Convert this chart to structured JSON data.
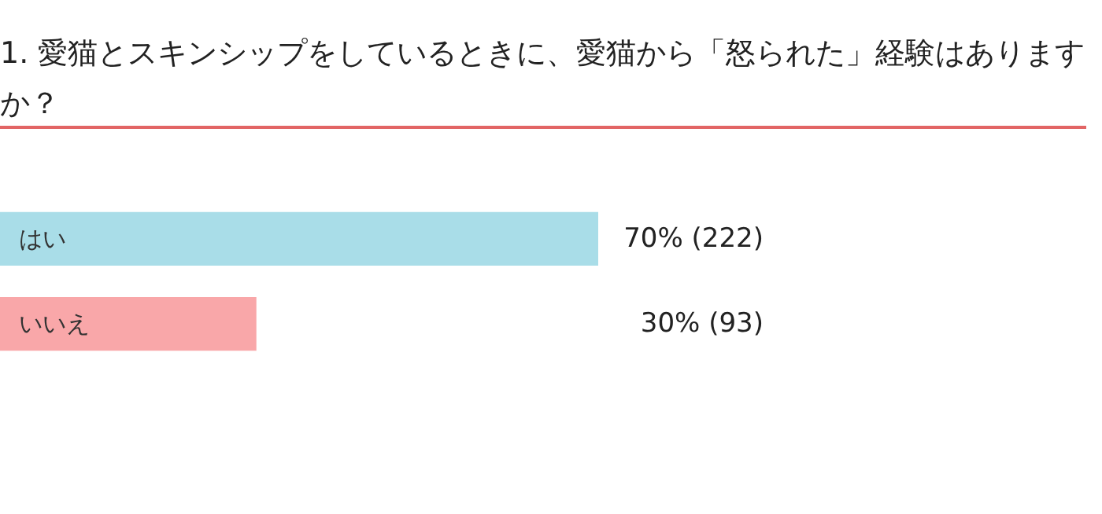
{
  "chart_data": {
    "type": "bar",
    "orientation": "horizontal",
    "title": "1. 愛猫とスキンシップをしているときに、愛猫から「怒られた」経験はありますか？",
    "categories": [
      "はい",
      "いいえ"
    ],
    "values": [
      70,
      30
    ],
    "colors": [
      "#a9dde8",
      "#f9a7a9"
    ],
    "value_labels": [
      "70% (222)",
      "30% (93)"
    ]
  }
}
